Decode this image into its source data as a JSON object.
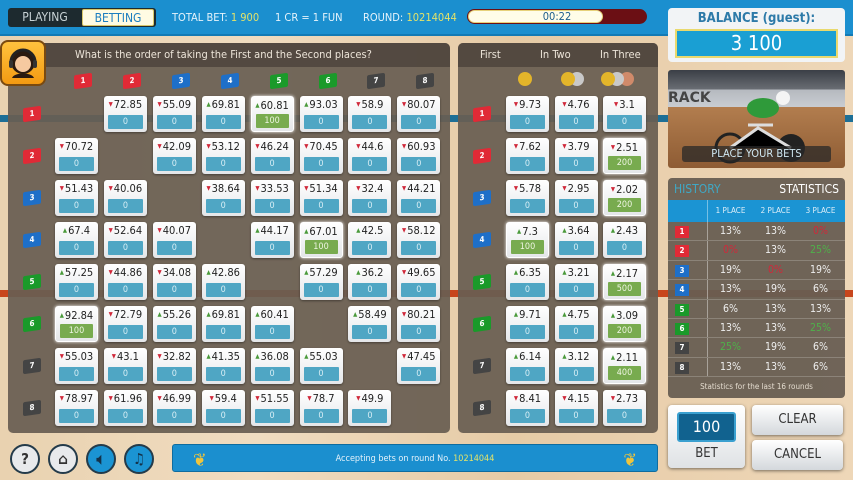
{
  "topbar": {
    "mode_playing": "PLAYING",
    "mode_betting": "BETTING",
    "total_bet_label": "TOTAL BET:",
    "total_bet": "1 900",
    "rate": "1 CR = 1 FUN",
    "round_label": "ROUND:",
    "round": "10214044",
    "timer": "00:22",
    "timer_remaining_fraction": 0.75
  },
  "question": "What is the order of taking the First and the Second places?",
  "flag_colors": {
    "1": "#e02a36",
    "2": "#e02a36",
    "3": "#1e6fc8",
    "4": "#1e6fc8",
    "5": "#1a9a2a",
    "6": "#1a9a2a",
    "7": "#444444",
    "8": "#444444"
  },
  "flags": [
    "1",
    "2",
    "3",
    "4",
    "5",
    "6",
    "7",
    "8"
  ],
  "grid": [
    [
      null,
      [
        "down",
        "72.85",
        "0"
      ],
      [
        "down",
        "55.09",
        "0"
      ],
      [
        "up",
        "69.81",
        "0"
      ],
      [
        "up",
        "60.81",
        "100"
      ],
      [
        "up",
        "93.03",
        "0"
      ],
      [
        "down",
        "58.9",
        "0"
      ],
      [
        "down",
        "80.07",
        "0"
      ]
    ],
    [
      [
        "down",
        "70.72",
        "0"
      ],
      null,
      [
        "down",
        "42.09",
        "0"
      ],
      [
        "down",
        "53.12",
        "0"
      ],
      [
        "down",
        "46.24",
        "0"
      ],
      [
        "down",
        "70.45",
        "0"
      ],
      [
        "down",
        "44.6",
        "0"
      ],
      [
        "down",
        "60.93",
        "0"
      ]
    ],
    [
      [
        "down",
        "51.43",
        "0"
      ],
      [
        "down",
        "40.06",
        "0"
      ],
      null,
      [
        "down",
        "38.64",
        "0"
      ],
      [
        "down",
        "33.53",
        "0"
      ],
      [
        "down",
        "51.34",
        "0"
      ],
      [
        "down",
        "32.4",
        "0"
      ],
      [
        "down",
        "44.21",
        "0"
      ]
    ],
    [
      [
        "up",
        "67.4",
        "0"
      ],
      [
        "down",
        "52.64",
        "0"
      ],
      [
        "down",
        "40.07",
        "0"
      ],
      null,
      [
        "up",
        "44.17",
        "0"
      ],
      [
        "up",
        "67.01",
        "100"
      ],
      [
        "up",
        "42.5",
        "0"
      ],
      [
        "down",
        "58.12",
        "0"
      ]
    ],
    [
      [
        "up",
        "57.25",
        "0"
      ],
      [
        "down",
        "44.86",
        "0"
      ],
      [
        "down",
        "34.08",
        "0"
      ],
      [
        "up",
        "42.86",
        "0"
      ],
      null,
      [
        "up",
        "57.29",
        "0"
      ],
      [
        "up",
        "36.2",
        "0"
      ],
      [
        "down",
        "49.65",
        "0"
      ]
    ],
    [
      [
        "up",
        "92.84",
        "100"
      ],
      [
        "down",
        "72.79",
        "0"
      ],
      [
        "up",
        "55.26",
        "0"
      ],
      [
        "up",
        "69.81",
        "0"
      ],
      [
        "up",
        "60.41",
        "0"
      ],
      null,
      [
        "up",
        "58.49",
        "0"
      ],
      [
        "down",
        "80.21",
        "0"
      ]
    ],
    [
      [
        "down",
        "55.03",
        "0"
      ],
      [
        "down",
        "43.1",
        "0"
      ],
      [
        "down",
        "32.82",
        "0"
      ],
      [
        "up",
        "41.35",
        "0"
      ],
      [
        "up",
        "36.08",
        "0"
      ],
      [
        "up",
        "55.03",
        "0"
      ],
      null,
      [
        "down",
        "47.45",
        "0"
      ]
    ],
    [
      [
        "down",
        "78.97",
        "0"
      ],
      [
        "down",
        "61.96",
        "0"
      ],
      [
        "down",
        "46.99",
        "0"
      ],
      [
        "down",
        "59.4",
        "0"
      ],
      [
        "down",
        "51.55",
        "0"
      ],
      [
        "down",
        "78.7",
        "0"
      ],
      [
        "down",
        "49.9",
        "0"
      ],
      null
    ]
  ],
  "places": {
    "headers": [
      "First",
      "In Two",
      "In Three"
    ],
    "rows": [
      [
        [
          "down",
          "9.73",
          "0"
        ],
        [
          "down",
          "4.76",
          "0"
        ],
        [
          "down",
          "3.1",
          "0"
        ]
      ],
      [
        [
          "down",
          "7.62",
          "0"
        ],
        [
          "down",
          "3.79",
          "0"
        ],
        [
          "down",
          "2.51",
          "200"
        ]
      ],
      [
        [
          "down",
          "5.78",
          "0"
        ],
        [
          "down",
          "2.95",
          "0"
        ],
        [
          "down",
          "2.02",
          "200"
        ]
      ],
      [
        [
          "up",
          "7.3",
          "100"
        ],
        [
          "up",
          "3.64",
          "0"
        ],
        [
          "up",
          "2.43",
          "0"
        ]
      ],
      [
        [
          "up",
          "6.35",
          "0"
        ],
        [
          "up",
          "3.21",
          "0"
        ],
        [
          "up",
          "2.17",
          "500"
        ]
      ],
      [
        [
          "up",
          "9.71",
          "0"
        ],
        [
          "up",
          "4.75",
          "0"
        ],
        [
          "up",
          "3.09",
          "200"
        ]
      ],
      [
        [
          "up",
          "6.14",
          "0"
        ],
        [
          "up",
          "3.12",
          "0"
        ],
        [
          "up",
          "2.11",
          "400"
        ]
      ],
      [
        [
          "down",
          "8.41",
          "0"
        ],
        [
          "down",
          "4.15",
          "0"
        ],
        [
          "down",
          "2.73",
          "0"
        ]
      ]
    ]
  },
  "balance": {
    "label": "BALANCE (guest):",
    "value": "3 100"
  },
  "video": {
    "caption": "PLACE YOUR BETS"
  },
  "stats": {
    "tab_history": "HISTORY",
    "tab_statistics": "STATISTICS",
    "columns": [
      "1 PLACE",
      "2 PLACE",
      "3 PLACE"
    ],
    "rows": [
      [
        "13%",
        "13%",
        "0%"
      ],
      [
        "0%",
        "13%",
        "25%"
      ],
      [
        "19%",
        "0%",
        "19%"
      ],
      [
        "13%",
        "19%",
        "6%"
      ],
      [
        "6%",
        "13%",
        "13%"
      ],
      [
        "13%",
        "13%",
        "25%"
      ],
      [
        "25%",
        "19%",
        "6%"
      ],
      [
        "13%",
        "13%",
        "6%"
      ]
    ],
    "footer": "Statistics for the last 16 rounds"
  },
  "bet": {
    "amount": "100",
    "label": "BET"
  },
  "buttons": {
    "clear": "CLEAR",
    "cancel": "CANCEL"
  },
  "message": {
    "text": "Accepting bets on round No.",
    "round": "10214044"
  },
  "colors": {
    "up": "#4a9a3a",
    "down": "#d0283a",
    "bet": "#4fa6c4",
    "bet_placed": "#78ab4f",
    "topbar": "#1b8fcf"
  }
}
